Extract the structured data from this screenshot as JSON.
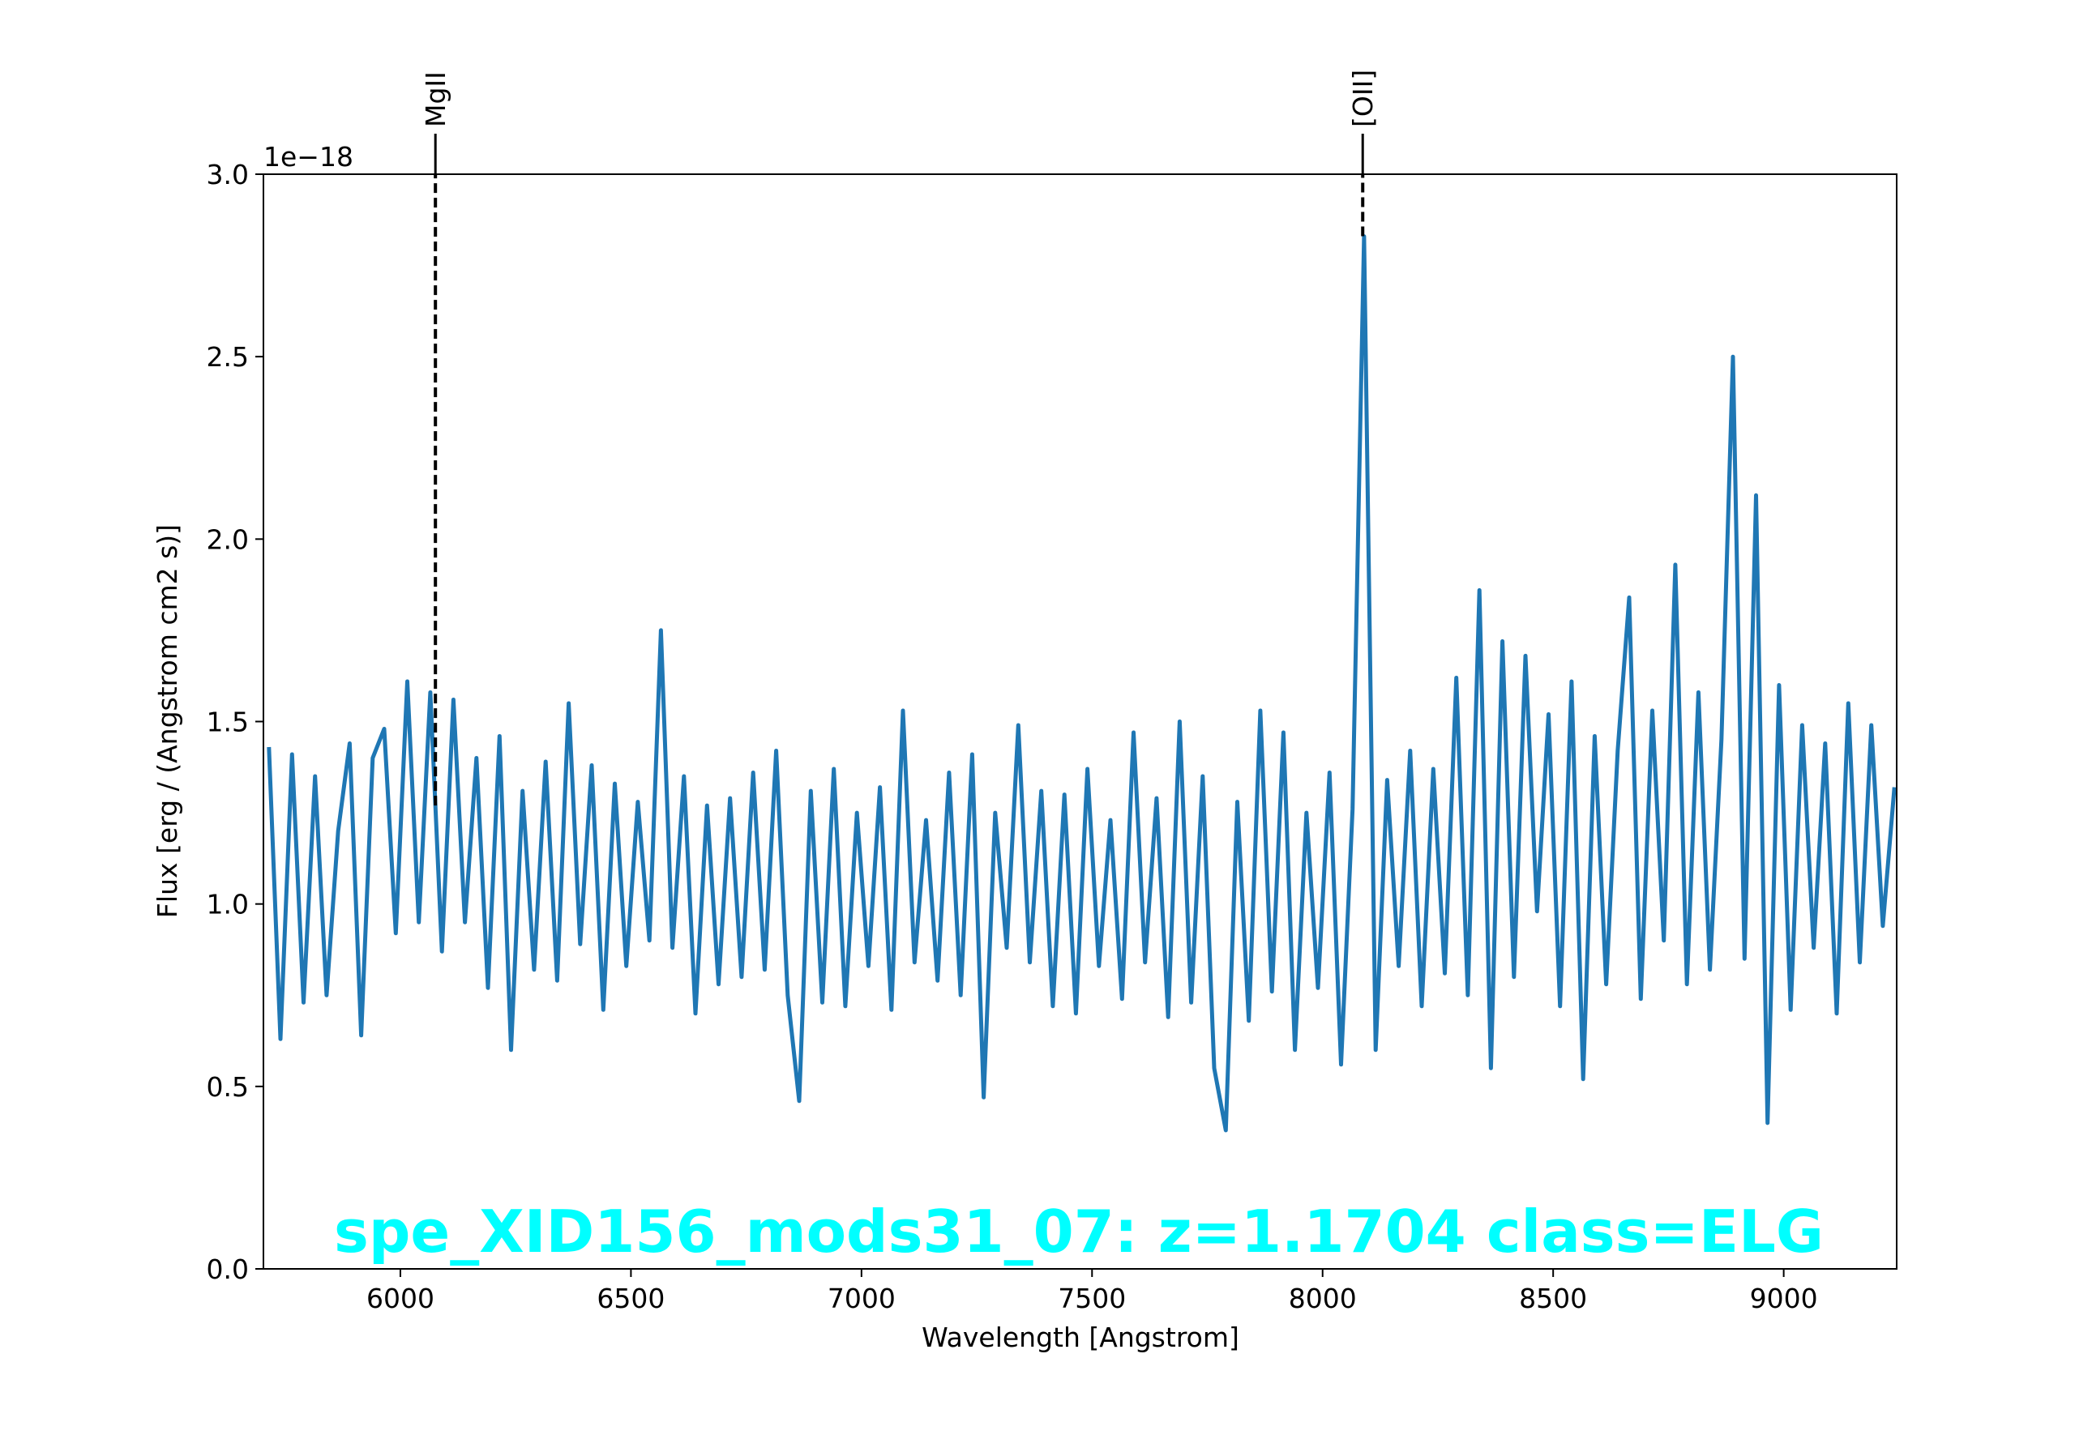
{
  "chart_data": {
    "type": "line",
    "title": "spe_XID156_mods31_07: z=1.1704 class=ELG",
    "xlabel": "Wavelength [Angstrom]",
    "ylabel": "Flux [erg / (Angstrom cm2 s)]",
    "y_offset_label": "1e−18",
    "color": "#1f77b4",
    "title_color": "#00ffff",
    "x": [
      5715,
      5740,
      5765,
      5790,
      5815,
      5840,
      5865,
      5890,
      5915,
      5940,
      5965,
      5990,
      6015,
      6040,
      6065,
      6090,
      6115,
      6140,
      6165,
      6190,
      6215,
      6240,
      6265,
      6290,
      6315,
      6340,
      6365,
      6390,
      6415,
      6440,
      6465,
      6490,
      6515,
      6540,
      6565,
      6590,
      6615,
      6640,
      6665,
      6690,
      6715,
      6740,
      6765,
      6790,
      6815,
      6840,
      6865,
      6890,
      6915,
      6940,
      6965,
      6990,
      7015,
      7040,
      7065,
      7090,
      7115,
      7140,
      7165,
      7190,
      7215,
      7240,
      7265,
      7290,
      7315,
      7340,
      7365,
      7390,
      7415,
      7440,
      7465,
      7490,
      7515,
      7540,
      7565,
      7590,
      7615,
      7640,
      7665,
      7690,
      7715,
      7740,
      7765,
      7790,
      7815,
      7840,
      7865,
      7890,
      7915,
      7940,
      7965,
      7990,
      8015,
      8040,
      8065,
      8090,
      8115,
      8140,
      8165,
      8190,
      8215,
      8240,
      8265,
      8290,
      8315,
      8340,
      8365,
      8390,
      8415,
      8440,
      8465,
      8490,
      8515,
      8540,
      8565,
      8590,
      8615,
      8640,
      8665,
      8690,
      8715,
      8740,
      8765,
      8790,
      8815,
      8840,
      8865,
      8890,
      8915,
      8940,
      8965,
      8990,
      9015,
      9040,
      9065,
      9090,
      9115,
      9140,
      9165,
      9190,
      9215,
      9240
    ],
    "values": [
      1.43,
      0.63,
      1.41,
      0.73,
      1.35,
      0.75,
      1.2,
      1.44,
      0.64,
      1.4,
      1.48,
      0.92,
      1.61,
      0.95,
      1.58,
      0.87,
      1.56,
      0.95,
      1.4,
      0.77,
      1.46,
      0.6,
      1.31,
      0.82,
      1.39,
      0.79,
      1.55,
      0.89,
      1.38,
      0.71,
      1.33,
      0.83,
      1.28,
      0.9,
      1.75,
      0.88,
      1.35,
      0.7,
      1.27,
      0.78,
      1.29,
      0.8,
      1.36,
      0.82,
      1.42,
      0.75,
      0.46,
      1.31,
      0.73,
      1.37,
      0.72,
      1.25,
      0.83,
      1.32,
      0.71,
      1.53,
      0.84,
      1.23,
      0.79,
      1.36,
      0.75,
      1.41,
      0.47,
      1.25,
      0.88,
      1.49,
      0.84,
      1.31,
      0.72,
      1.3,
      0.7,
      1.37,
      0.83,
      1.23,
      0.74,
      1.47,
      0.84,
      1.29,
      0.69,
      1.5,
      0.73,
      1.35,
      0.55,
      0.38,
      1.28,
      0.68,
      1.53,
      0.76,
      1.47,
      0.6,
      1.25,
      0.77,
      1.36,
      0.56,
      1.26,
      2.83,
      0.6,
      1.34,
      0.83,
      1.42,
      0.72,
      1.37,
      0.81,
      1.62,
      0.75,
      1.86,
      0.55,
      1.72,
      0.8,
      1.68,
      0.98,
      1.52,
      0.72,
      1.61,
      0.52,
      1.46,
      0.78,
      1.42,
      1.84,
      0.74,
      1.53,
      0.9,
      1.93,
      0.78,
      1.58,
      0.82,
      1.45,
      2.5,
      0.85,
      2.12,
      0.4,
      1.6,
      0.71,
      1.49,
      0.88,
      1.44,
      0.7,
      1.55,
      0.84,
      1.49,
      0.94,
      1.32
    ],
    "xlim": [
      5703,
      9245
    ],
    "ylim": [
      0,
      3
    ],
    "xticks": [
      6000,
      6500,
      7000,
      7500,
      8000,
      8500,
      9000
    ],
    "yticks": [
      {
        "value": 0,
        "label": "0.0"
      },
      {
        "value": 0.5,
        "label": "0.5"
      },
      {
        "value": 1,
        "label": "1.0"
      },
      {
        "value": 1.5,
        "label": "1.5"
      },
      {
        "value": 2,
        "label": "2.0"
      },
      {
        "value": 2.5,
        "label": "2.5"
      },
      {
        "value": 3,
        "label": "3.0"
      }
    ],
    "lines": [
      {
        "label": "MgII",
        "x": 6076,
        "y": 1.27
      },
      {
        "label": "[OII]",
        "x": 8087,
        "y": 2.83
      }
    ]
  }
}
